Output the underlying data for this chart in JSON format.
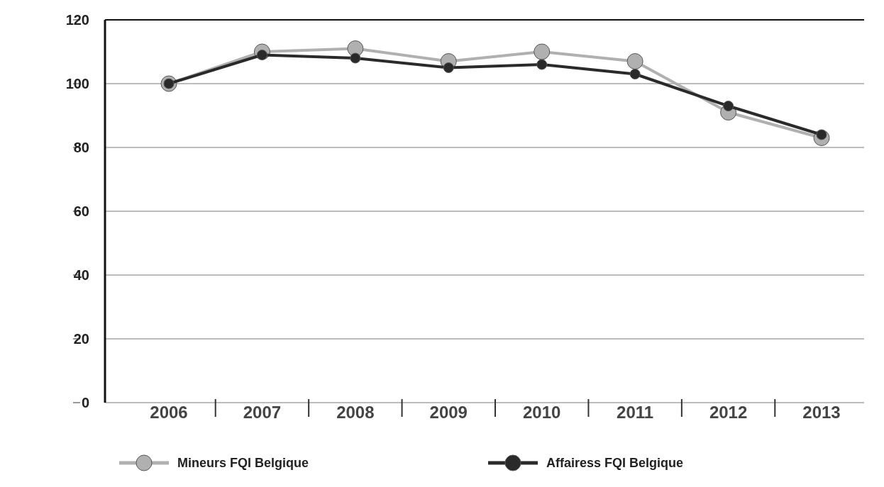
{
  "chart_data": {
    "type": "line",
    "categories": [
      "2006",
      "2007",
      "2008",
      "2009",
      "2010",
      "2011",
      "2012",
      "2013"
    ],
    "series": [
      {
        "name": "Mineurs FQI Belgique",
        "color": "#b0b0b0",
        "values": [
          100,
          110,
          111,
          107,
          110,
          107,
          91,
          83
        ]
      },
      {
        "name": "Affairess FQI Belgique",
        "color": "#2a2a2a",
        "values": [
          100,
          109,
          108,
          105,
          106,
          103,
          93,
          84
        ]
      }
    ],
    "ylim": [
      0,
      120
    ],
    "yticks": [
      0,
      20,
      40,
      60,
      80,
      100,
      120
    ],
    "grid": "y",
    "legend": "bottom",
    "marker": "circle",
    "line_style": "solid"
  }
}
